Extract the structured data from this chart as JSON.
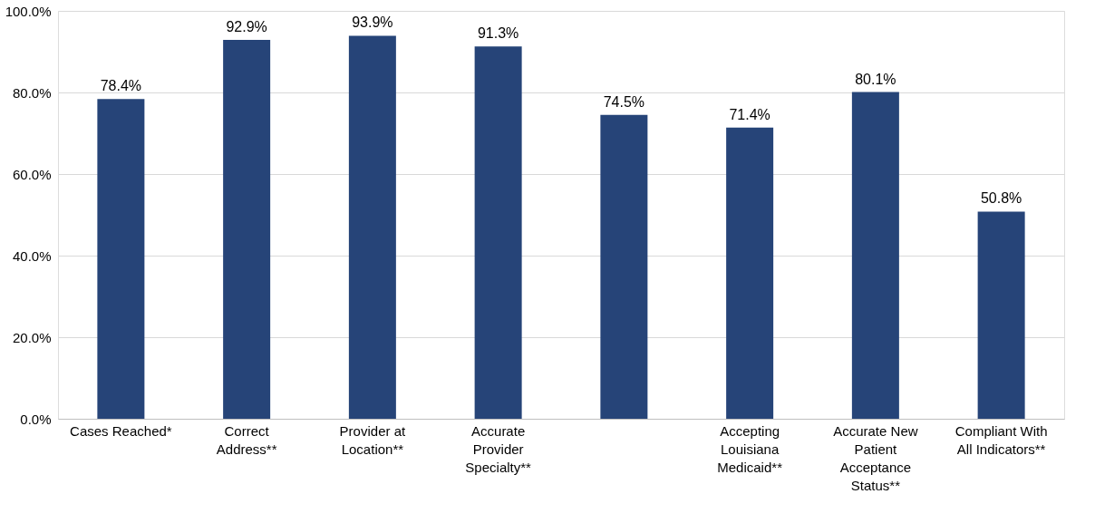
{
  "chart_data": {
    "type": "bar",
    "categories": [
      "Cases Reached*",
      "Correct Address**",
      "Provider at Location**",
      "Accurate Provider Specialty**",
      null,
      "Accepting Louisiana Medicaid**",
      "Accurate New Patient Acceptance Status**",
      "Compliant With All Indicators**"
    ],
    "values": [
      78.4,
      92.9,
      93.9,
      91.3,
      74.5,
      71.4,
      80.1,
      50.8
    ],
    "value_labels": [
      "78.4%",
      "92.9%",
      "93.9%",
      "91.3%",
      "74.5%",
      "71.4%",
      "80.1%",
      "50.8%"
    ],
    "color": "#264478",
    "ylim": [
      0,
      100
    ],
    "yticks": [
      {
        "value": 0,
        "label": "0.0%"
      },
      {
        "value": 20,
        "label": "20.0%"
      },
      {
        "value": 40,
        "label": "40.0%"
      },
      {
        "value": 60,
        "label": "60.0%"
      },
      {
        "value": 80,
        "label": "80.0%"
      },
      {
        "value": 100,
        "label": "100.0%"
      }
    ],
    "grid": "y"
  }
}
